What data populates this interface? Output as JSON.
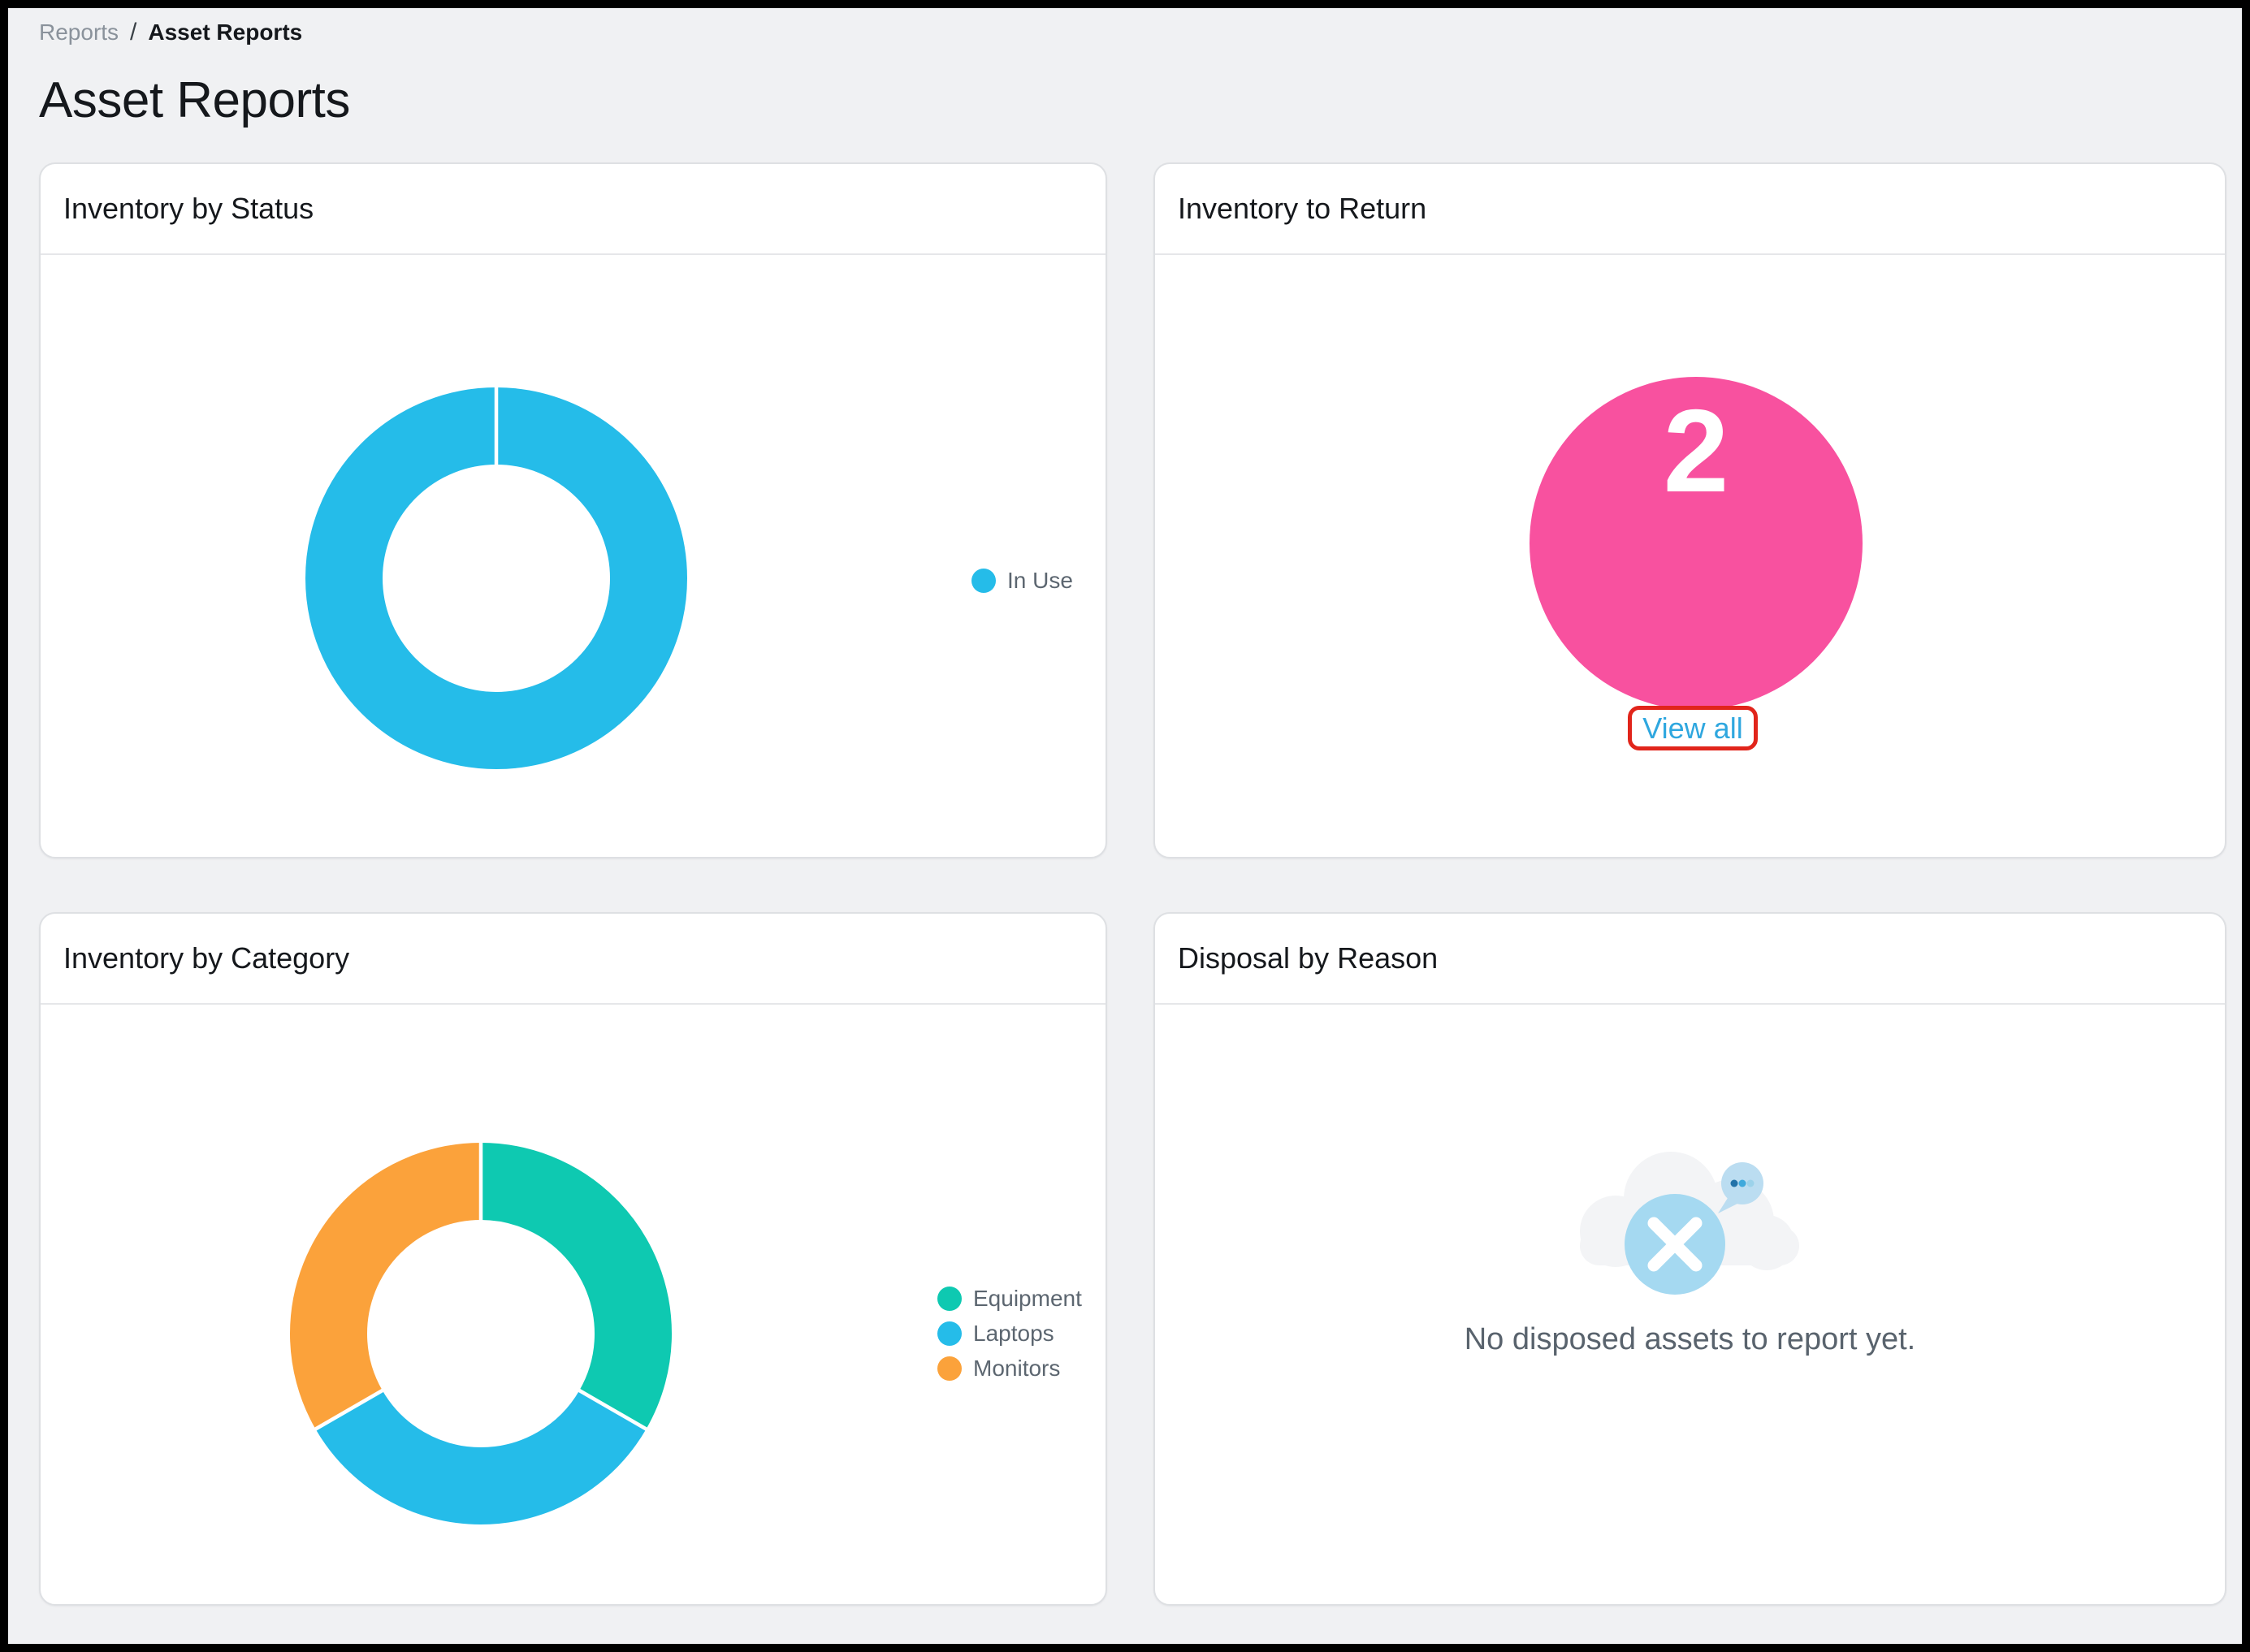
{
  "page": {
    "breadcrumb": {
      "parent": "Reports",
      "separator": "/",
      "current": "Asset Reports"
    },
    "title": "Asset Reports"
  },
  "cards": {
    "inventory_by_status": {
      "title": "Inventory by Status"
    },
    "inventory_to_return": {
      "title": "Inventory to Return",
      "count": "2",
      "view_all_label": "View all"
    },
    "inventory_by_category": {
      "title": "Inventory by Category"
    },
    "disposal_by_reason": {
      "title": "Disposal by Reason",
      "empty_message": "No disposed assets to report yet."
    }
  },
  "chart_data": [
    {
      "id": "inventory_by_status",
      "type": "donut",
      "title": "Inventory by Status",
      "legend_position": "right",
      "segments": [
        {
          "label": "In Use",
          "value": 1,
          "percent": 100,
          "color": "#25BCE9"
        }
      ]
    },
    {
      "id": "inventory_by_category",
      "type": "donut",
      "title": "Inventory by Category",
      "legend_position": "right",
      "segments": [
        {
          "label": "Equipment",
          "value": 1,
          "percent": 33.3,
          "color": "#0EC9B1"
        },
        {
          "label": "Laptops",
          "value": 1,
          "percent": 33.3,
          "color": "#25BCE9"
        },
        {
          "label": "Monitors",
          "value": 1,
          "percent": 33.3,
          "color": "#FBA23B"
        }
      ]
    },
    {
      "id": "inventory_to_return",
      "type": "kpi-circle",
      "title": "Inventory to Return",
      "value": 2,
      "color": "#F8519F",
      "link_label": "View all"
    }
  ],
  "icons": {
    "empty_state": "cloud-error-icon",
    "empty_state_x": "x-circle-icon",
    "empty_state_badge": "chat-dots-icon"
  },
  "colors": {
    "page_background": "#F0F1F3",
    "card_border": "#DEE0E3",
    "kpi_pink": "#F8519F",
    "link_blue": "#2FA7DF",
    "annotation_red": "#E1251B",
    "legend_text": "#5C6670"
  }
}
